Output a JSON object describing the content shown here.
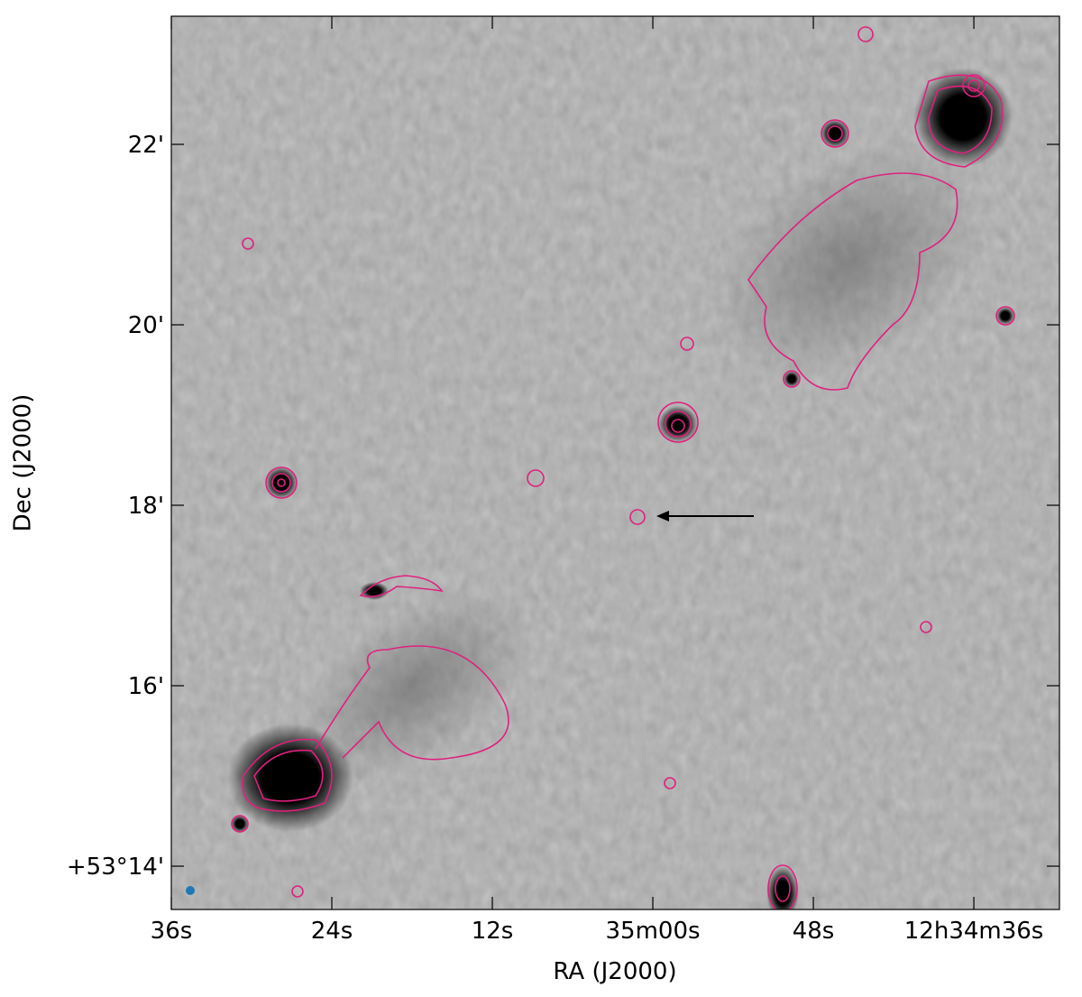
{
  "chart_data": {
    "type": "image",
    "xlabel": "RA (J2000)",
    "ylabel": "Dec (J2000)",
    "xlim": [
      96,
      29.6
    ],
    "ylim": [
      13.52,
      23.42
    ],
    "xticks": [
      {
        "value": 96,
        "label": "36s"
      },
      {
        "value": 84,
        "label": "24s"
      },
      {
        "value": 72,
        "label": "12s"
      },
      {
        "value": 60,
        "label": "35m00s"
      },
      {
        "value": 48,
        "label": "48s"
      },
      {
        "value": 36,
        "label": "12h34m36s"
      }
    ],
    "yticks": [
      {
        "value": 14,
        "label": "+53°14'"
      },
      {
        "value": 16,
        "label": "16'"
      },
      {
        "value": 18,
        "label": "18'"
      },
      {
        "value": 20,
        "label": "20'"
      },
      {
        "value": 22,
        "label": "22'"
      }
    ]
  }
}
